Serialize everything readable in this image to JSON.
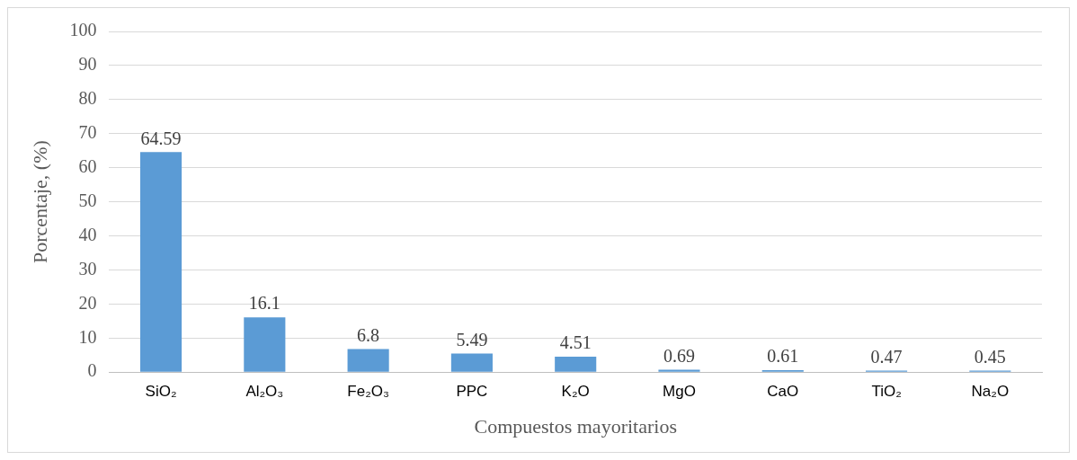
{
  "chart_data": {
    "type": "bar",
    "xlabel": "Compuestos mayoritarios",
    "ylabel": "Porcentaje, (%)",
    "categories": [
      "SiO₂",
      "Al₂O₃",
      "Fe₂O₃",
      "PPC",
      "K₂O",
      "MgO",
      "CaO",
      "TiO₂",
      "Na₂O"
    ],
    "values": [
      64.59,
      16.1,
      6.8,
      5.49,
      4.51,
      0.69,
      0.61,
      0.47,
      0.45
    ],
    "color": "#5b9bd5",
    "ylim": [
      0,
      100
    ],
    "yticks": [
      0,
      10,
      20,
      30,
      40,
      50,
      60,
      70,
      80,
      90,
      100
    ],
    "grid": "y",
    "data_labels": true,
    "legend": false
  }
}
